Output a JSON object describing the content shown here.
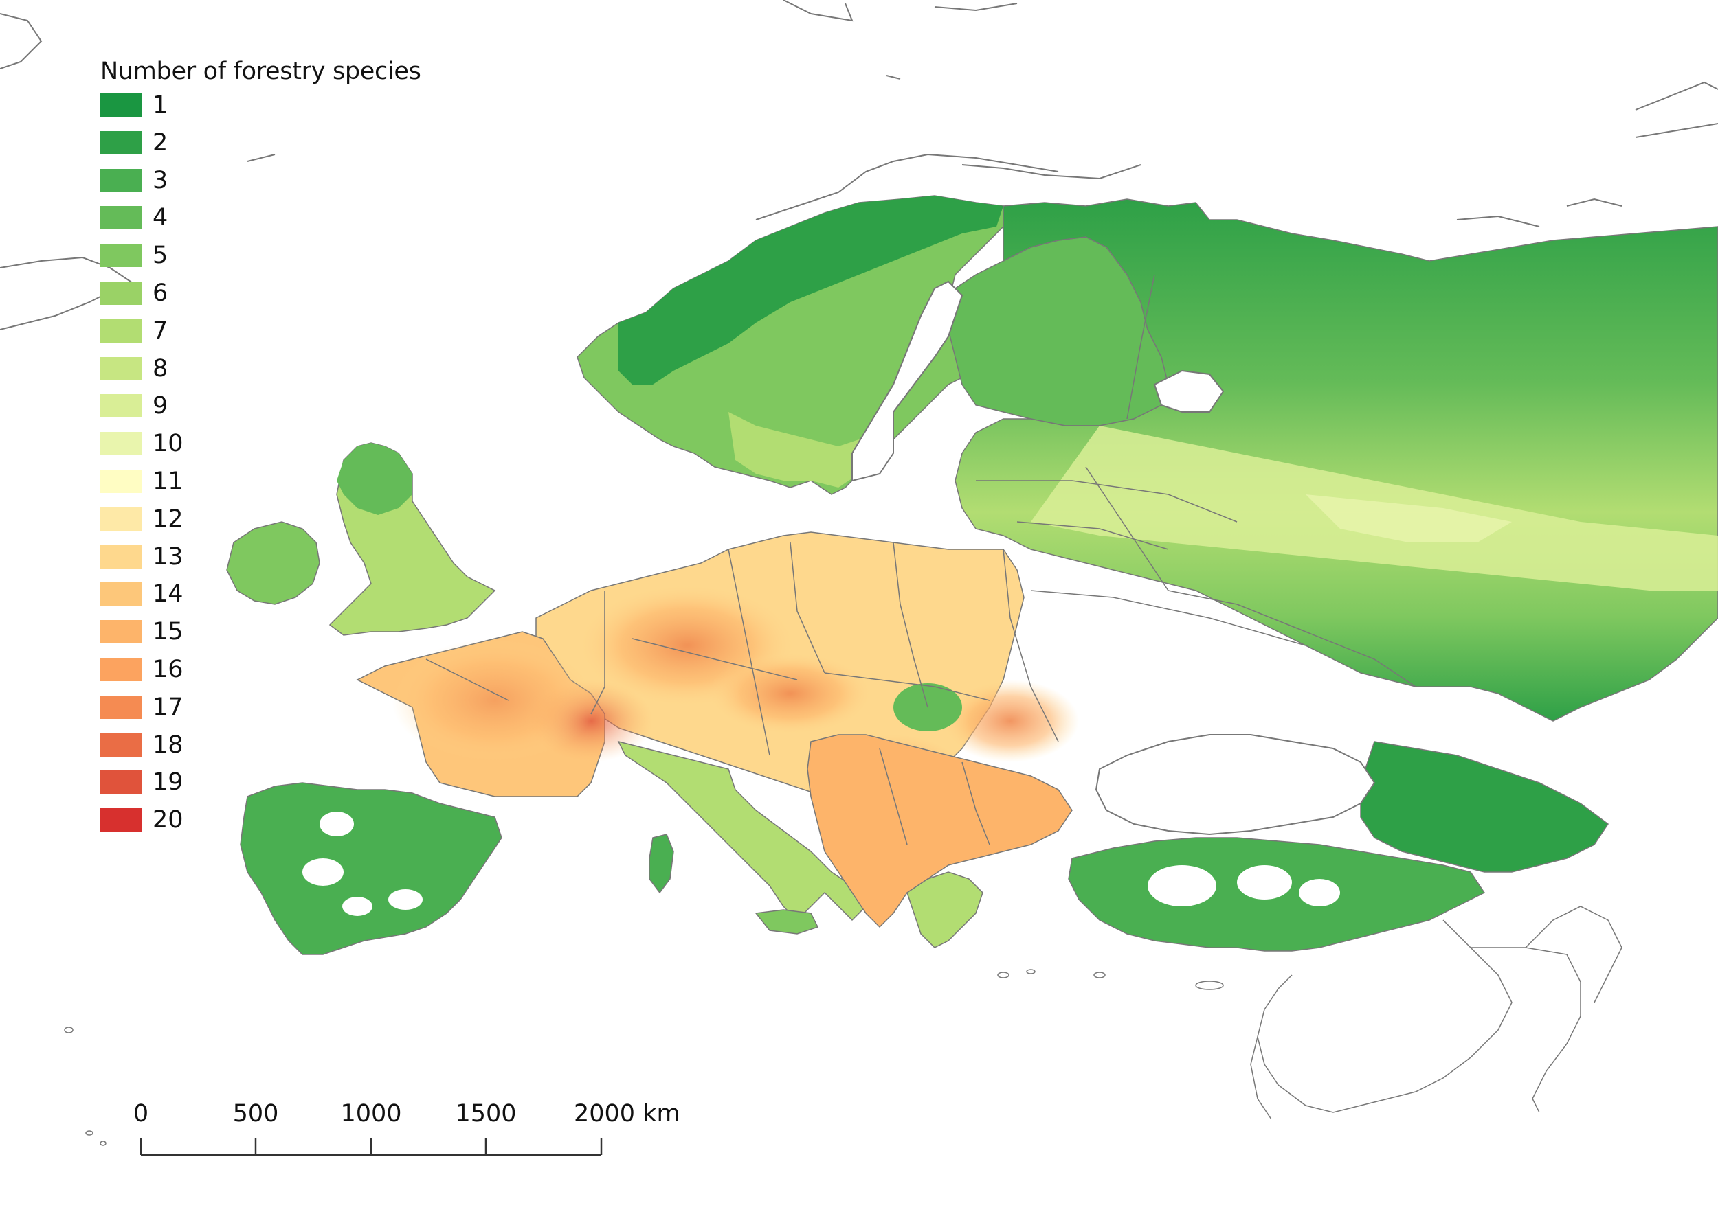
{
  "legend": {
    "title": "Number of forestry species",
    "items": [
      {
        "label": "1",
        "color": "#1a9641"
      },
      {
        "label": "2",
        "color": "#2ea047"
      },
      {
        "label": "3",
        "color": "#4aaf51"
      },
      {
        "label": "4",
        "color": "#64bb58"
      },
      {
        "label": "5",
        "color": "#7fc85f"
      },
      {
        "label": "6",
        "color": "#9ad266"
      },
      {
        "label": "7",
        "color": "#b2dd72"
      },
      {
        "label": "8",
        "color": "#c7e682"
      },
      {
        "label": "9",
        "color": "#d9ee96"
      },
      {
        "label": "10",
        "color": "#e9f5ad"
      },
      {
        "label": "11",
        "color": "#fffdc3"
      },
      {
        "label": "12",
        "color": "#fee9a7"
      },
      {
        "label": "13",
        "color": "#fed88d"
      },
      {
        "label": "14",
        "color": "#fdc77a"
      },
      {
        "label": "15",
        "color": "#fdb46a"
      },
      {
        "label": "16",
        "color": "#fca35f"
      },
      {
        "label": "17",
        "color": "#f58b52"
      },
      {
        "label": "18",
        "color": "#ea6d45"
      },
      {
        "label": "19",
        "color": "#e0533b"
      },
      {
        "label": "20",
        "color": "#d7302e"
      }
    ]
  },
  "scalebar": {
    "ticks": [
      "0",
      "500",
      "1000",
      "1500",
      "2000 km"
    ]
  }
}
